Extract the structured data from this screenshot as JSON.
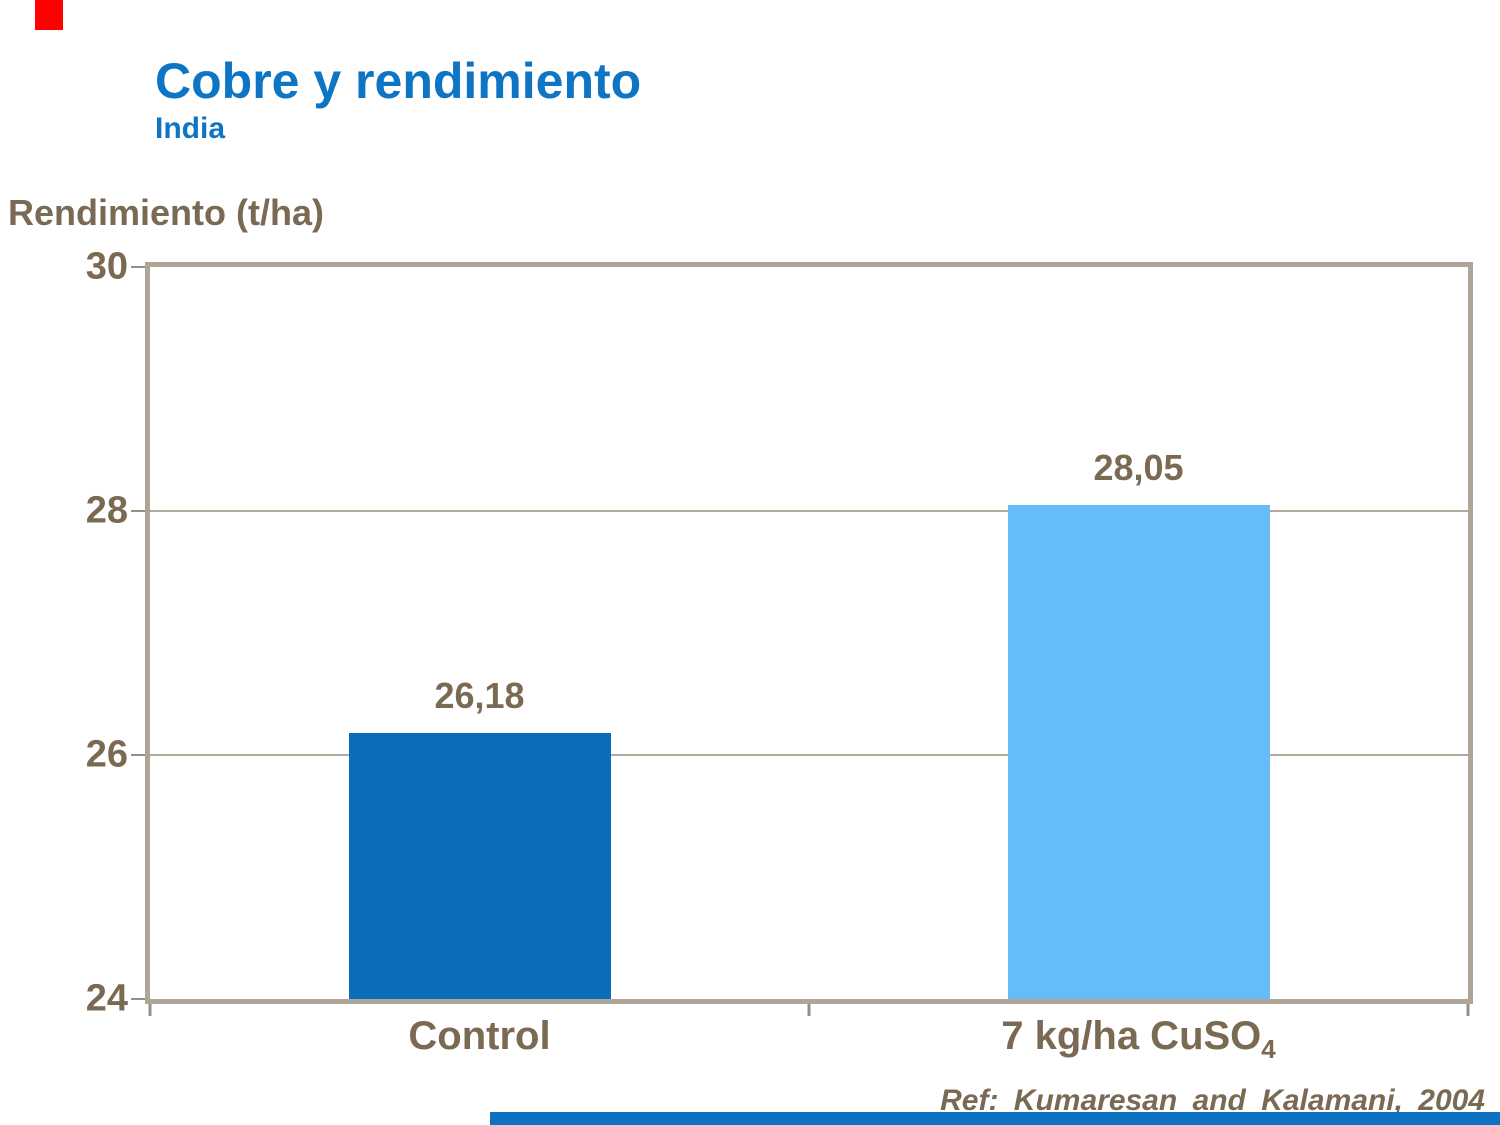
{
  "header": {
    "title": "Cobre y rendimiento",
    "subtitle": "India"
  },
  "footer": {
    "reference": "Ref: Kumaresan and Kalamani, 2004"
  },
  "colors": {
    "title_blue": "#0e74c4",
    "text_brown": "#7b6a53",
    "bar_control": "#0a6dbc",
    "bar_cuso4": "#65bcf9",
    "frame_tan": "#aea497",
    "gridline_tan": "#b2a99a",
    "tick_tan": "#998f80",
    "red_accent": "#ff0000",
    "footer_bar_blue": "#0d72c2"
  },
  "cat_labels": [
    {
      "text": "Control",
      "sub": ""
    },
    {
      "text": "7 kg/ha CuSO",
      "sub": "4"
    }
  ],
  "chart_data": {
    "type": "bar",
    "title": "Cobre y rendimiento",
    "subtitle": "India",
    "categories": [
      "Control",
      "7 kg/ha CuSO₄"
    ],
    "values": [
      26.18,
      28.05
    ],
    "data_labels": [
      "26,18",
      "28,05"
    ],
    "xlabel": "",
    "ylabel": "Rendimiento (t/ha)",
    "ylim": [
      24,
      30
    ],
    "yticks": [
      24,
      26,
      28,
      30
    ],
    "grid": true,
    "legend": false,
    "bar_colors": [
      "#0a6dbc",
      "#65bcf9"
    ],
    "annotation": "Ref: Kumaresan and Kalamani, 2004"
  }
}
